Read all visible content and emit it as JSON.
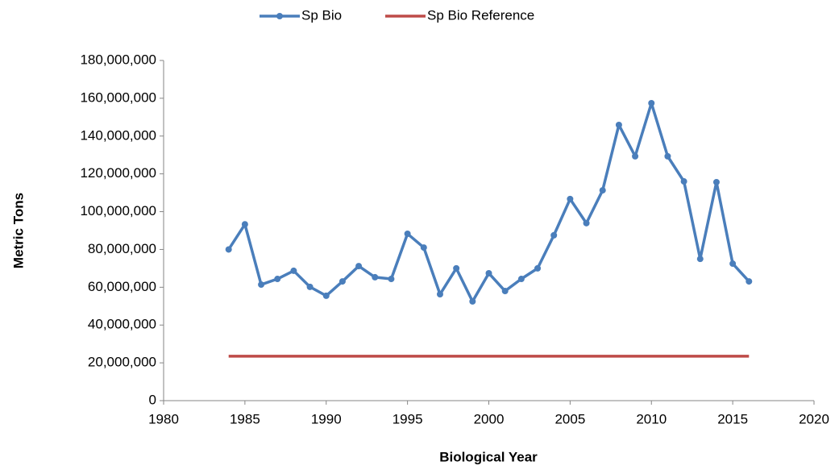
{
  "chart_data": {
    "type": "line",
    "x_label": "Biological Year",
    "y_label": "Metric Tons",
    "xlim": [
      1980,
      2020
    ],
    "xticks": [
      1980,
      1985,
      1990,
      1995,
      2000,
      2005,
      2010,
      2015,
      2020
    ],
    "ylim": [
      0,
      180000000
    ],
    "yticks": [
      0,
      {
        "value": 20000000,
        "label": "20,000,000"
      },
      {
        "value": 40000000,
        "label": "40,000,000"
      },
      {
        "value": 60000000,
        "label": "60,000,000"
      },
      {
        "value": 80000000,
        "label": "80,000,000"
      },
      {
        "value": 100000000,
        "label": "100,000,000"
      },
      {
        "value": 120000000,
        "label": "120,000,000"
      },
      {
        "value": 140000000,
        "label": "140,000,000"
      },
      {
        "value": 160000000,
        "label": "160,000,000"
      },
      {
        "value": 180000000,
        "label": "180,000,000"
      }
    ],
    "grid": false,
    "legend": "top",
    "series": [
      {
        "name": "Sp Bio",
        "color": "#4a7ebb",
        "markers": true,
        "x": [
          1984,
          1985,
          1986,
          1987,
          1988,
          1989,
          1990,
          1991,
          1992,
          1993,
          1994,
          1995,
          1996,
          1997,
          1998,
          1999,
          2000,
          2001,
          2002,
          2003,
          2004,
          2005,
          2006,
          2007,
          2008,
          2009,
          2010,
          2011,
          2012,
          2013,
          2014,
          2015,
          2016
        ],
        "values": [
          80000000,
          93300000,
          61400000,
          64400000,
          68700000,
          60200000,
          55500000,
          63100000,
          71200000,
          65300000,
          64400000,
          88300000,
          81000000,
          56300000,
          70000000,
          52500000,
          67400000,
          58000000,
          64400000,
          70000000,
          87500000,
          106700000,
          93900000,
          111300000,
          145900000,
          129300000,
          157400000,
          129300000,
          116000000,
          75000000,
          115600000,
          72500000,
          63100000
        ]
      },
      {
        "name": "Sp Bio Reference",
        "color": "#be4b48",
        "markers": false,
        "x": [
          1984,
          2016
        ],
        "values": [
          23500000,
          23500000
        ]
      }
    ]
  }
}
